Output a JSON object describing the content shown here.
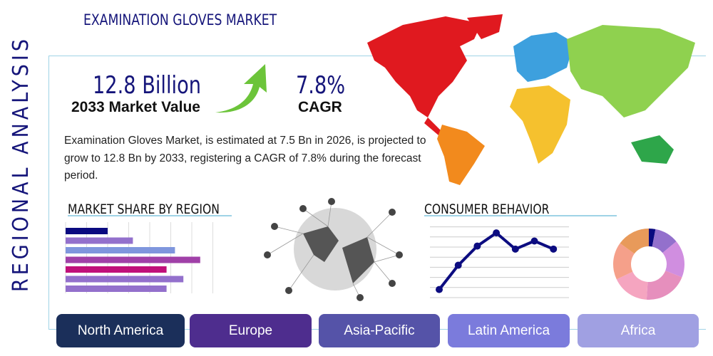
{
  "header": {
    "title": "EXAMINATION GLOVES MARKET",
    "side_title": "REGIONAL ANALYSIS"
  },
  "stats": {
    "market_value": "12.8 Billion",
    "market_value_label": "2033 Market Value",
    "cagr": "7.8%",
    "cagr_label": "CAGR",
    "arrow_icon": "green-up-arrow"
  },
  "description": "Examination Gloves Market, is estimated at 7.5 Bn in 2026, is projected to grow to 12.8 Bn by 2033, registering a CAGR of 7.8% during the forecast period.",
  "sections": {
    "market_share": "MARKET SHARE BY REGION",
    "consumer": "CONSUMER BEHAVIOR"
  },
  "regions": [
    {
      "label": "North America",
      "color": "#1b2f5a"
    },
    {
      "label": "Europe",
      "color": "#4e2d8e"
    },
    {
      "label": "Asia-Pacific",
      "color": "#5553a8"
    },
    {
      "label": "Latin America",
      "color": "#7b7bdc"
    },
    {
      "label": "Africa",
      "color": "#a0a0e2"
    }
  ],
  "chart_data": [
    {
      "type": "bar",
      "orientation": "horizontal",
      "grid": true,
      "values": [
        2.0,
        3.2,
        5.2,
        6.4,
        4.8,
        5.6,
        4.8
      ],
      "colors": [
        "#0a0a80",
        "#9370cc",
        "#7f96dd",
        "#a040a8",
        "#c0107a",
        "#9370cc",
        "#9370cc"
      ],
      "xlim": [
        0,
        8
      ]
    },
    {
      "type": "line",
      "grid": true,
      "values": [
        0.8,
        3.2,
        5.1,
        6.4,
        4.8,
        5.6,
        4.8
      ],
      "ylim": [
        0,
        7
      ],
      "color": "#0c0c80"
    },
    {
      "type": "pie",
      "donut": true,
      "values": [
        3,
        11,
        17,
        20,
        17,
        17,
        15
      ],
      "colors": [
        "#0a0a80",
        "#9370cc",
        "#d08ee0",
        "#e68fbd",
        "#f5a5c0",
        "#f5a08a",
        "#e89a5a"
      ]
    }
  ]
}
